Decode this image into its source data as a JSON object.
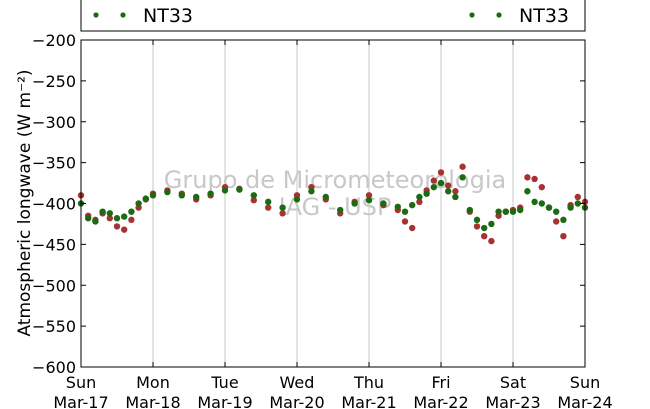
{
  "chart_data": {
    "type": "scatter",
    "ylabel": "Atmospheric longwave (W m⁻²)",
    "ylim": [
      -600,
      -200
    ],
    "yticks": [
      -200,
      -250,
      -300,
      -350,
      -400,
      -450,
      -500,
      -550,
      -600
    ],
    "xlim": [
      0,
      7
    ],
    "xticks": [
      {
        "x": 0,
        "day": "Sun",
        "date": "Mar-17"
      },
      {
        "x": 1,
        "day": "Mon",
        "date": "Mar-18"
      },
      {
        "x": 2,
        "day": "Tue",
        "date": "Mar-19"
      },
      {
        "x": 3,
        "day": "Wed",
        "date": "Mar-20"
      },
      {
        "x": 4,
        "day": "Thu",
        "date": "Mar-21"
      },
      {
        "x": 5,
        "day": "Fri",
        "date": "Mar-22"
      },
      {
        "x": 6,
        "day": "Sat",
        "date": "Mar-23"
      },
      {
        "x": 7,
        "day": "Sun",
        "date": "Mar-24"
      }
    ],
    "grid": "vertical",
    "legend": {
      "placement": "top",
      "entries": [
        {
          "label": "NT33",
          "color": "#1a6b12",
          "position": "left"
        },
        {
          "label": "NT33",
          "color": "#1a6b12",
          "position": "right"
        }
      ]
    },
    "watermark": [
      "Grupo de Micrometeorologia",
      "IAG - USP"
    ],
    "series": [
      {
        "color": "#a83232",
        "x": [
          0.0,
          0.1,
          0.2,
          0.3,
          0.4,
          0.5,
          0.6,
          0.7,
          0.8,
          0.9,
          1.0,
          1.2,
          1.4,
          1.6,
          1.8,
          2.0,
          2.2,
          2.4,
          2.6,
          2.8,
          3.0,
          3.2,
          3.4,
          3.6,
          3.8,
          4.0,
          4.2,
          4.4,
          4.5,
          4.6,
          4.7,
          4.8,
          4.9,
          5.0,
          5.1,
          5.2,
          5.3,
          5.4,
          5.5,
          5.6,
          5.7,
          5.8,
          5.9,
          6.0,
          6.1,
          6.2,
          6.3,
          6.4,
          6.5,
          6.6,
          6.7,
          6.8,
          6.9,
          7.0
        ],
        "y": [
          -390,
          -415,
          -420,
          -412,
          -418,
          -428,
          -432,
          -420,
          -405,
          -395,
          -388,
          -384,
          -388,
          -395,
          -390,
          -380,
          -382,
          -396,
          -405,
          -412,
          -390,
          -380,
          -395,
          -412,
          -398,
          -390,
          -402,
          -408,
          -422,
          -430,
          -398,
          -384,
          -372,
          -362,
          -378,
          -385,
          -355,
          -410,
          -428,
          -440,
          -446,
          -415,
          -410,
          -408,
          -405,
          -368,
          -370,
          -380,
          -405,
          -422,
          -440,
          -402,
          -392,
          -398
        ]
      },
      {
        "color": "#1a6b12",
        "x": [
          0.0,
          0.1,
          0.2,
          0.3,
          0.4,
          0.5,
          0.6,
          0.7,
          0.8,
          0.9,
          1.0,
          1.2,
          1.4,
          1.6,
          1.8,
          2.0,
          2.2,
          2.4,
          2.6,
          2.8,
          3.0,
          3.2,
          3.4,
          3.6,
          3.8,
          4.0,
          4.2,
          4.4,
          4.5,
          4.6,
          4.7,
          4.8,
          4.9,
          5.0,
          5.1,
          5.2,
          5.3,
          5.4,
          5.5,
          5.6,
          5.7,
          5.8,
          5.9,
          6.0,
          6.1,
          6.2,
          6.3,
          6.4,
          6.5,
          6.6,
          6.7,
          6.8,
          6.9,
          7.0
        ],
        "y": [
          -400,
          -418,
          -422,
          -410,
          -412,
          -418,
          -416,
          -410,
          -400,
          -394,
          -390,
          -386,
          -390,
          -392,
          -388,
          -384,
          -383,
          -390,
          -398,
          -405,
          -395,
          -385,
          -392,
          -408,
          -400,
          -396,
          -400,
          -404,
          -410,
          -402,
          -392,
          -388,
          -380,
          -375,
          -385,
          -392,
          -368,
          -408,
          -420,
          -430,
          -425,
          -410,
          -410,
          -410,
          -408,
          -385,
          -398,
          -400,
          -405,
          -410,
          -420,
          -405,
          -400,
          -405
        ]
      }
    ]
  }
}
